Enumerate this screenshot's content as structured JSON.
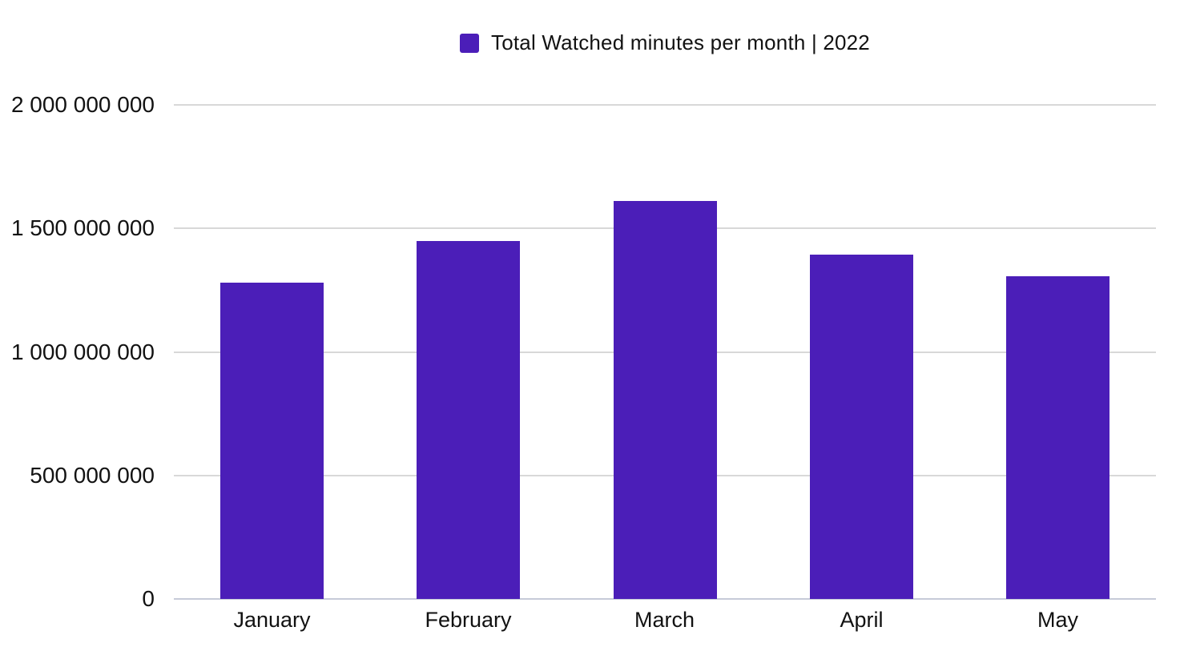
{
  "legend": {
    "label": "Total Watched minutes per month | 2022",
    "swatch_color": "#4B1EB8"
  },
  "chart_data": {
    "type": "bar",
    "title": "Total Watched minutes per month | 2022",
    "categories": [
      "January",
      "February",
      "March",
      "April",
      "May"
    ],
    "values": [
      1280000000,
      1450000000,
      1610000000,
      1395000000,
      1305000000
    ],
    "series": [
      {
        "name": "Total Watched minutes per month | 2022",
        "values": [
          1280000000,
          1450000000,
          1610000000,
          1395000000,
          1305000000
        ]
      }
    ],
    "xlabel": "",
    "ylabel": "",
    "ylim": [
      0,
      2000000000
    ],
    "ytick_interval": 500000000,
    "ytick_labels": [
      "0",
      "500 000 000",
      "1 000 000 000",
      "1 500 000 000",
      "2 000 000 000"
    ],
    "grid": true,
    "legend_position": "top-center",
    "colors": {
      "bar": "#4B1EB8",
      "gridline": "#D8D8D8",
      "axis_line": "#C6CBD8",
      "text": "#121212",
      "background": "#FFFFFF"
    }
  }
}
